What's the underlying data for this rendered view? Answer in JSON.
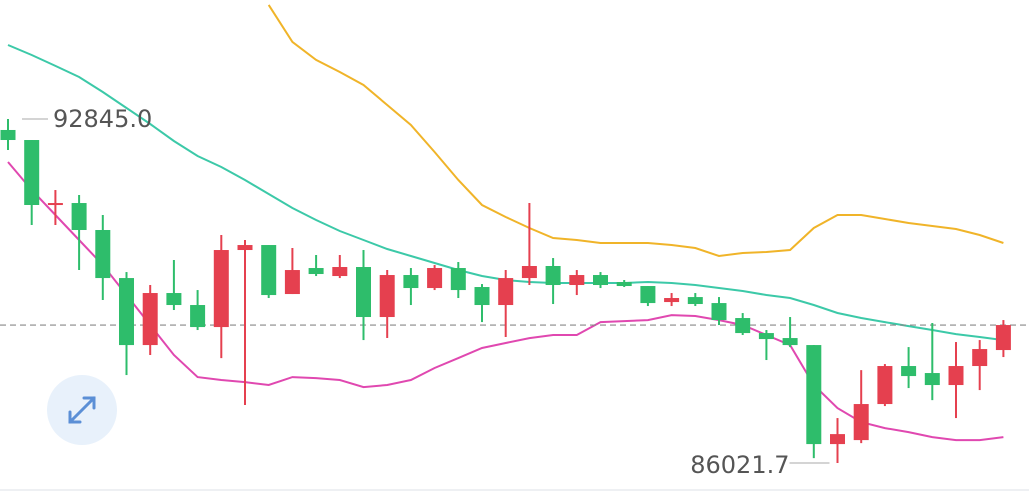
{
  "chart_data": {
    "type": "candlestick",
    "ylim": [
      85268,
      95205
    ],
    "up_color": "#e5404f",
    "down_color": "#2ebd6b",
    "open": [
      92627,
      92428,
      91139,
      91178,
      90643,
      89690,
      88361,
      89393,
      89155,
      88718,
      90246,
      90345,
      89373,
      89889,
      89730,
      89909,
      88917,
      89750,
      89492,
      89889,
      89512,
      89155,
      89690,
      89929,
      89552,
      89750,
      89611,
      89532,
      89214,
      89313,
      89194,
      88897,
      88599,
      88500,
      88361,
      86397,
      86476,
      87191,
      87945,
      87806,
      87568,
      87945,
      88262
    ],
    "high": [
      92845,
      92428,
      91436,
      91337,
      90940,
      89809,
      89552,
      90048,
      89452,
      90544,
      90444,
      90345,
      90286,
      90147,
      90147,
      90246,
      89849,
      89889,
      89948,
      90008,
      89571,
      89849,
      91178,
      90087,
      89849,
      89809,
      89651,
      89532,
      89393,
      89393,
      89313,
      88996,
      88659,
      88917,
      88361,
      86913,
      87865,
      87984,
      88321,
      88798,
      88421,
      88460,
      88857
    ],
    "low": [
      92230,
      90742,
      90742,
      89849,
      89254,
      87766,
      88163,
      89056,
      88659,
      88103,
      87171,
      89294,
      89373,
      89730,
      89690,
      88460,
      88500,
      89155,
      89452,
      89294,
      88817,
      88520,
      89552,
      89175,
      89353,
      89492,
      89512,
      89135,
      89135,
      89135,
      88758,
      88560,
      88064,
      88321,
      86119,
      86021.7,
      86417,
      87151,
      87508,
      87270,
      86913,
      87468,
      88123
    ],
    "close": [
      92428,
      91139,
      91178,
      90643,
      89690,
      88361,
      89393,
      89155,
      88718,
      90246,
      90345,
      89353,
      89849,
      89770,
      89909,
      88917,
      89750,
      89492,
      89889,
      89452,
      89155,
      89690,
      89929,
      89552,
      89750,
      89552,
      89532,
      89194,
      89294,
      89175,
      88857,
      88599,
      88480,
      88361,
      86397,
      86595,
      87191,
      87945,
      87746,
      87568,
      87945,
      88282,
      88758
    ],
    "lines": [
      {
        "color": "#f0b429",
        "values": [
          null,
          null,
          null,
          null,
          null,
          null,
          null,
          null,
          null,
          null,
          null,
          95107,
          94373,
          94016,
          93777,
          93520,
          93123,
          92726,
          92190,
          91635,
          91139,
          90901,
          90682,
          90484,
          90444,
          90385,
          90385,
          90385,
          90345,
          90286,
          90127,
          90186,
          90206,
          90246,
          90682,
          90940,
          90940,
          90861,
          90782,
          90722,
          90663,
          90544,
          90385
        ]
      },
      {
        "color": "#3cc9a8",
        "values": [
          94313,
          94115,
          93897,
          93678,
          93381,
          93063,
          92746,
          92409,
          92111,
          91893,
          91635,
          91357,
          91079,
          90841,
          90623,
          90444,
          90266,
          90127,
          89988,
          89849,
          89730,
          89651,
          89611,
          89591,
          89591,
          89591,
          89591,
          89611,
          89591,
          89552,
          89492,
          89433,
          89353,
          89294,
          89155,
          88996,
          88897,
          88817,
          88738,
          88659,
          88579,
          88520,
          88460
        ]
      },
      {
        "color": "#e048b0",
        "values": [
          91992,
          91436,
          90940,
          90444,
          89948,
          89353,
          88758,
          88163,
          87726,
          87667,
          87627,
          87568,
          87726,
          87706,
          87667,
          87528,
          87568,
          87667,
          87905,
          88103,
          88302,
          88401,
          88500,
          88560,
          88560,
          88817,
          88837,
          88857,
          88956,
          88937,
          88857,
          88758,
          88560,
          88361,
          87568,
          87111,
          86833,
          86714,
          86635,
          86536,
          86476,
          86476,
          86536
        ]
      }
    ],
    "annotations": [
      {
        "value": 92845,
        "label": "92845.0"
      },
      {
        "value": 86021.7,
        "label": "86021.7"
      }
    ]
  }
}
